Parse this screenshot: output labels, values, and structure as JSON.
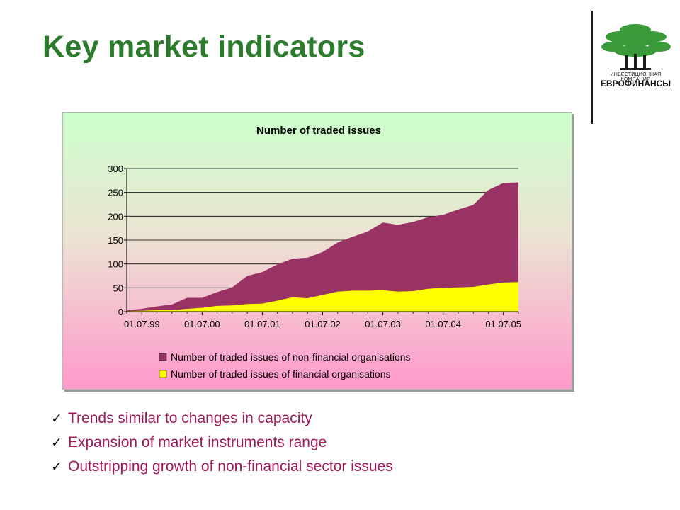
{
  "slide": {
    "title": "Key market indicators"
  },
  "logo": {
    "icon": "tree-icon",
    "line1": "ИНВЕСТИЦИОННАЯ КОМПАНИЯ",
    "line2": "ЕВРОФИНАНСЫ",
    "colors": {
      "foliage": "#3a9a3a",
      "trunk": "#1a1a1a"
    }
  },
  "bullets": [
    {
      "icon": "check-icon",
      "text": "Trends similar to changes in capacity"
    },
    {
      "icon": "check-icon",
      "text": "Expansion of market instruments range"
    },
    {
      "icon": "check-icon",
      "text": "Outstripping growth of non-financial sector issues"
    }
  ],
  "colors": {
    "title": "#2c7a2c",
    "bullet_text": "#a0185a",
    "non_financial": "#993366",
    "financial": "#ffff00"
  },
  "chart_data": {
    "type": "area",
    "stacked": true,
    "title": "Number of traded issues",
    "xlabel": "",
    "ylabel": "",
    "ylim": [
      0,
      300
    ],
    "yticks": [
      0,
      50,
      100,
      150,
      200,
      250,
      300
    ],
    "x_tick_labels": [
      "01.07.99",
      "01.07.00",
      "01.07.01",
      "01.07.02",
      "01.07.03",
      "01.07.04",
      "01.07.05"
    ],
    "x": [
      "01.04.99",
      "01.07.99",
      "01.10.99",
      "01.01.00",
      "01.04.00",
      "01.07.00",
      "01.10.00",
      "01.01.01",
      "01.04.01",
      "01.07.01",
      "01.10.01",
      "01.01.02",
      "01.04.02",
      "01.07.02",
      "01.10.02",
      "01.01.03",
      "01.04.03",
      "01.07.03",
      "01.10.03",
      "01.01.04",
      "01.04.04",
      "01.07.04",
      "01.10.04",
      "01.01.05",
      "01.04.05",
      "01.07.05",
      "01.10.05"
    ],
    "grid": true,
    "legend_position": "bottom",
    "series": [
      {
        "name": "Number of traded issues of non-financial organisations",
        "total_values": [
          3,
          6,
          11,
          15,
          29,
          29,
          41,
          51,
          75,
          83,
          99,
          111,
          113,
          125,
          145,
          157,
          168,
          187,
          182,
          188,
          198,
          203,
          214,
          224,
          255,
          270,
          271
        ]
      },
      {
        "name": "Number of traded issues of financial organisations",
        "values": [
          1,
          2,
          3,
          3,
          6,
          8,
          12,
          13,
          16,
          17,
          23,
          30,
          28,
          35,
          42,
          44,
          44,
          45,
          42,
          43,
          48,
          50,
          51,
          52,
          57,
          61,
          62
        ]
      }
    ],
    "background": {
      "top": "#ccffcc",
      "bottom": "#ff99cc"
    }
  }
}
